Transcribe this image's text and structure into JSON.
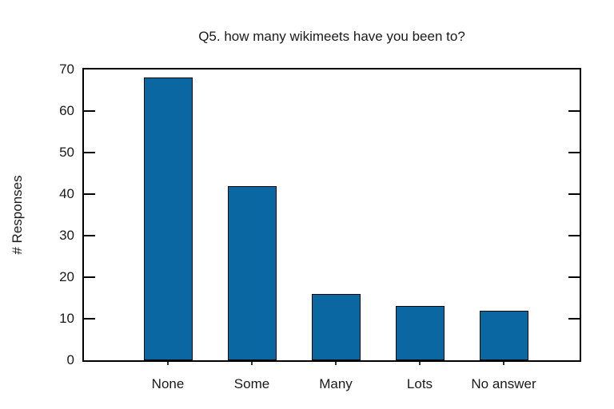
{
  "chart_data": {
    "type": "bar",
    "title": "Q5. how many wikimeets have you been to?",
    "xlabel": "",
    "ylabel": "# Responses",
    "categories": [
      "None",
      "Some",
      "Many",
      "Lots",
      "No answer"
    ],
    "values": [
      68,
      42,
      16,
      13,
      12
    ],
    "ylim": [
      0,
      70
    ],
    "yticks": [
      0,
      10,
      20,
      30,
      40,
      50,
      60,
      70
    ],
    "grid": false,
    "legend": "none",
    "bar_color": "#0b67a1",
    "bar_border_color": "#0a0a0a",
    "frame_color": "#000000",
    "text_color": "#1a1a1a",
    "background_color": "#ffffff"
  }
}
